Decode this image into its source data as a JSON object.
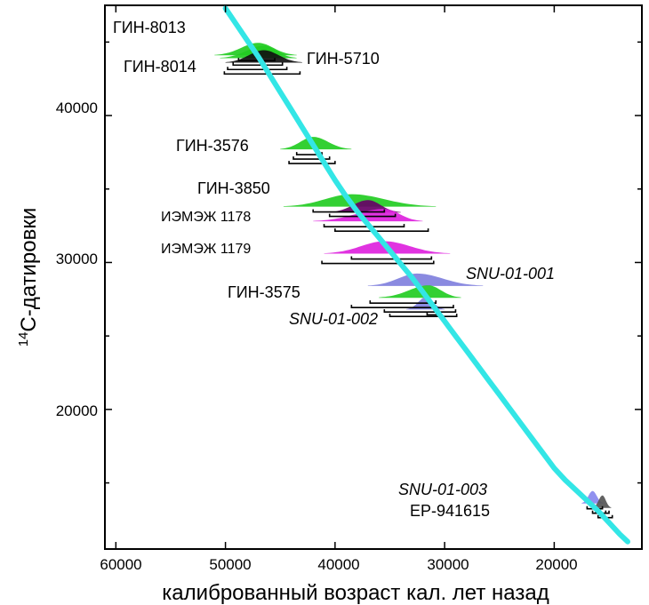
{
  "chart_data": {
    "type": "line",
    "title": "",
    "xlabel": "калиброванный возраст кал. лет назад",
    "ylabel_sup": "14",
    "ylabel_main": "С-датировки",
    "xlim": [
      61000,
      12000
    ],
    "ylim": [
      10500,
      47500
    ],
    "x_ticks": [
      60000,
      50000,
      40000,
      30000,
      20000
    ],
    "y_ticks": [
      20000,
      30000,
      40000
    ],
    "x_tick_labels": [
      "60000",
      "50000",
      "40000",
      "30000",
      "20000"
    ],
    "y_tick_labels": [
      "20000",
      "30000",
      "40000"
    ],
    "grid": false,
    "curve": {
      "color": "#33e6e6",
      "x": [
        50000,
        49000,
        48000,
        47000,
        46000,
        45000,
        44000,
        43000,
        42000,
        41000,
        40000,
        39000,
        38000,
        37000,
        36000,
        35000,
        34000,
        33000,
        32000,
        31000,
        30000,
        29000,
        28000,
        27000,
        26000,
        25000,
        24000,
        23000,
        22000,
        21000,
        20000,
        19000,
        18000,
        17000,
        16000,
        15000,
        14000,
        13300
      ],
      "y": [
        47300,
        46200,
        45100,
        44000,
        42800,
        41600,
        40400,
        39200,
        38000,
        36800,
        35600,
        34500,
        33500,
        32600,
        31700,
        30800,
        29900,
        29000,
        28000,
        27000,
        26000,
        25000,
        24000,
        23000,
        22000,
        21000,
        20000,
        19000,
        18000,
        17000,
        16000,
        15200,
        14500,
        13800,
        13100,
        12300,
        11500,
        11000
      ]
    },
    "samples": [
      {
        "name": "ГИН-8013",
        "y": 44100,
        "peak_x": 47000,
        "x_range": [
          51000,
          43500
        ],
        "color": "#22cc22",
        "ranges": [
          [
            48800,
            45500
          ],
          [
            49300,
            44800
          ],
          [
            49800,
            44400
          ],
          [
            50100,
            43200
          ]
        ]
      },
      {
        "name": "ГИН-8014",
        "y": 43900,
        "peak_x": 46500,
        "x_range": [
          50500,
          43500
        ],
        "color": "#22cc22",
        "ranges": []
      },
      {
        "name": "ГИН-5710",
        "y": 43600,
        "peak_x": 46500,
        "x_range": [
          50000,
          43000
        ],
        "color": "#111111",
        "ranges": []
      },
      {
        "name": "ГИН-3576",
        "y": 37700,
        "peak_x": 42000,
        "x_range": [
          45000,
          38500
        ],
        "color": "#22cc22",
        "ranges": [
          [
            43500,
            41200
          ],
          [
            43800,
            40500
          ],
          [
            44200,
            40000
          ]
        ]
      },
      {
        "name": "ГИН-3850",
        "y": 33800,
        "peak_x": 38500,
        "x_range": [
          44700,
          30800
        ],
        "color": "#22cc22",
        "ranges": [
          [
            42000,
            35500
          ],
          [
            40500,
            34500
          ]
        ]
      },
      {
        "name": "ИЭМЭЖ 1178",
        "y": 33400,
        "peak_x": 37000,
        "x_range": [
          40500,
          34000
        ],
        "color": "#660066",
        "ranges": []
      },
      {
        "name": "ИЭМЭЖ 1178",
        "y": 32800,
        "peak_x": 35500,
        "x_range": [
          42000,
          32000
        ],
        "color": "#dd22dd",
        "ranges": [
          [
            41000,
            33700
          ],
          [
            40000,
            31500
          ]
        ]
      },
      {
        "name": "ИЭМЭЖ 1179",
        "y": 30600,
        "peak_x": 35500,
        "x_range": [
          41000,
          29500
        ],
        "color": "#dd22dd",
        "ranges": [
          [
            38500,
            31200
          ],
          [
            41200,
            31000
          ]
        ]
      },
      {
        "name": "SNU-01-001",
        "y": 28400,
        "peak_x": 32500,
        "x_range": [
          37000,
          26500
        ],
        "color": "#8080dd",
        "ranges": []
      },
      {
        "name": "ГИН-3575",
        "y": 27600,
        "peak_x": 31500,
        "x_range": [
          36000,
          28500
        ],
        "color": "#22cc22",
        "ranges": [
          [
            36800,
            30800
          ],
          [
            38500,
            29200
          ],
          [
            35500,
            29000
          ],
          [
            35000,
            28900
          ]
        ]
      },
      {
        "name": "SNU-01-002",
        "y": 26800,
        "peak_x": 31700,
        "x_range": [
          33500,
          30000
        ],
        "color": "#8080dd",
        "ranges": [
          [
            31600,
            30600
          ]
        ]
      },
      {
        "name": "SNU-01-003",
        "y": 13600,
        "peak_x": 16500,
        "x_range": [
          17500,
          15500
        ],
        "color": "#8888ee",
        "ranges": [
          [
            17000,
            15600
          ],
          [
            16500,
            15000
          ],
          [
            16000,
            14700
          ]
        ]
      },
      {
        "name": "ЕР-941615",
        "y": 13300,
        "peak_x": 15600,
        "x_range": [
          16500,
          14800
        ],
        "color": "#555555",
        "ranges": [
          [
            16200,
            15300
          ]
        ]
      }
    ]
  }
}
